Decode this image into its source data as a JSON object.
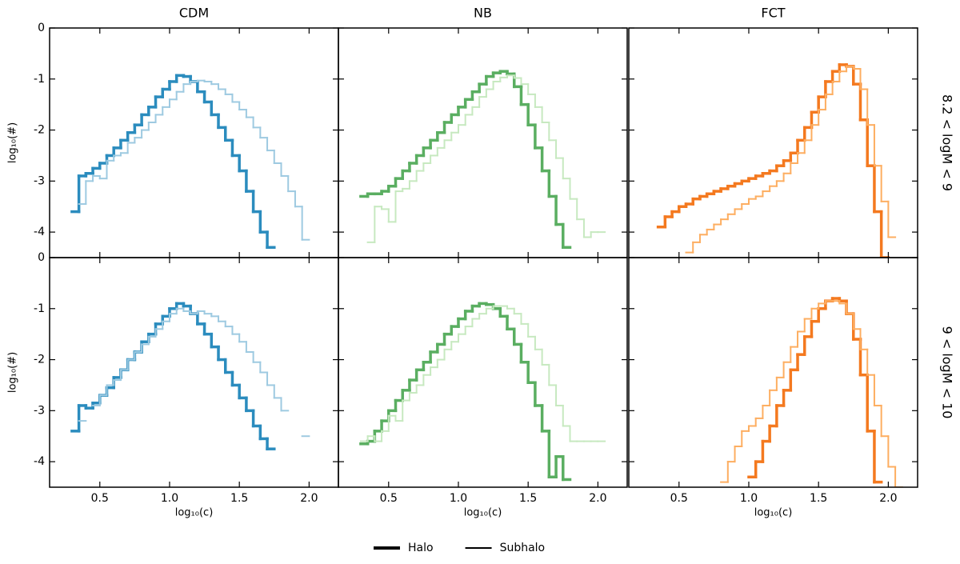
{
  "legend": [
    {
      "label": "Halo",
      "width": 4
    },
    {
      "label": "Subhalo",
      "width": 2
    }
  ],
  "chart_data": [
    {
      "type": "histogram",
      "title": "CDM",
      "ylabel": "log₁₀(#)",
      "bins": [
        0.3,
        0.35,
        0.4,
        0.45,
        0.5,
        0.55,
        0.6,
        0.65,
        0.7,
        0.75,
        0.8,
        0.85,
        0.9,
        0.95,
        1.0,
        1.05,
        1.1,
        1.15,
        1.2,
        1.25,
        1.3,
        1.35,
        1.4,
        1.45,
        1.5,
        1.55,
        1.6,
        1.65,
        1.7,
        1.75,
        1.8,
        1.85,
        1.9,
        1.95,
        2.0,
        2.05,
        2.1,
        2.15,
        2.2
      ],
      "series": [
        {
          "color": "#2b8cbe",
          "linewidth": 3.5,
          "values": [
            -3.6,
            -2.9,
            -2.85,
            -2.75,
            -2.65,
            -2.5,
            -2.35,
            -2.2,
            -2.05,
            -1.9,
            -1.7,
            -1.55,
            -1.35,
            -1.2,
            -1.05,
            -0.93,
            -0.95,
            -1.05,
            -1.25,
            -1.45,
            -1.7,
            -1.95,
            -2.2,
            -2.5,
            -2.8,
            -3.2,
            -3.6,
            -4.0,
            -4.3,
            null,
            null,
            null,
            null,
            null,
            null,
            null,
            null,
            null
          ]
        },
        {
          "color": "#9ecae1",
          "linewidth": 2,
          "values": [
            null,
            -3.45,
            -3.0,
            -2.9,
            -2.95,
            -2.6,
            -2.5,
            -2.45,
            -2.25,
            -2.15,
            -2.0,
            -1.85,
            -1.7,
            -1.55,
            -1.4,
            -1.25,
            -1.1,
            -1.05,
            -1.03,
            -1.05,
            -1.1,
            -1.2,
            -1.3,
            -1.45,
            -1.6,
            -1.75,
            -1.95,
            -2.15,
            -2.4,
            -2.65,
            -2.9,
            -3.2,
            -3.5,
            -4.15,
            null,
            null,
            null,
            null
          ]
        }
      ],
      "xlim": [
        0.14,
        2.21
      ],
      "ylim": [
        -4.5,
        0
      ],
      "xticks": [
        0.5,
        1,
        1.5,
        2
      ],
      "yticks": [
        0,
        -1,
        -2,
        -3,
        -4
      ]
    },
    {
      "type": "histogram",
      "title": "NB",
      "bins": [
        0.3,
        0.35,
        0.4,
        0.45,
        0.5,
        0.55,
        0.6,
        0.65,
        0.7,
        0.75,
        0.8,
        0.85,
        0.9,
        0.95,
        1.0,
        1.05,
        1.1,
        1.15,
        1.2,
        1.25,
        1.3,
        1.35,
        1.4,
        1.45,
        1.5,
        1.55,
        1.6,
        1.65,
        1.7,
        1.75,
        1.8,
        1.85,
        1.9,
        1.95,
        2.0,
        2.05,
        2.1,
        2.15,
        2.2
      ],
      "series": [
        {
          "color": "#5aae61",
          "linewidth": 3.5,
          "values": [
            -3.3,
            -3.25,
            -3.25,
            -3.2,
            -3.1,
            -2.95,
            -2.8,
            -2.65,
            -2.5,
            -2.35,
            -2.2,
            -2.05,
            -1.85,
            -1.7,
            -1.55,
            -1.4,
            -1.25,
            -1.1,
            -0.95,
            -0.88,
            -0.85,
            -0.9,
            -1.15,
            -1.5,
            -1.9,
            -2.35,
            -2.8,
            -3.3,
            -3.85,
            -4.3,
            null,
            null,
            null,
            null,
            null,
            null,
            null,
            null
          ]
        },
        {
          "color": "#c7e9c0",
          "linewidth": 2,
          "values": [
            null,
            -4.2,
            -3.5,
            -3.55,
            -3.8,
            -3.2,
            -3.15,
            -3.0,
            -2.8,
            -2.65,
            -2.5,
            -2.35,
            -2.2,
            -2.05,
            -1.9,
            -1.7,
            -1.55,
            -1.35,
            -1.2,
            -1.05,
            -0.97,
            -0.93,
            -0.98,
            -1.1,
            -1.3,
            -1.55,
            -1.85,
            -2.2,
            -2.55,
            -2.95,
            -3.35,
            -3.75,
            -4.1,
            -4.0,
            -4.0,
            null,
            null,
            null
          ]
        }
      ],
      "xlim": [
        0.14,
        2.21
      ],
      "ylim": [
        -4.5,
        0
      ],
      "xticks": [
        0.5,
        1,
        1.5,
        2
      ],
      "yticks": [
        0,
        -1,
        -2,
        -3,
        -4
      ]
    },
    {
      "type": "histogram",
      "title": "FCT",
      "row_label": "8.2 < logM < 9",
      "bins": [
        0.3,
        0.35,
        0.4,
        0.45,
        0.5,
        0.55,
        0.6,
        0.65,
        0.7,
        0.75,
        0.8,
        0.85,
        0.9,
        0.95,
        1.0,
        1.05,
        1.1,
        1.15,
        1.2,
        1.25,
        1.3,
        1.35,
        1.4,
        1.45,
        1.5,
        1.55,
        1.6,
        1.65,
        1.7,
        1.75,
        1.8,
        1.85,
        1.9,
        1.95,
        2.0,
        2.05,
        2.1,
        2.15,
        2.2
      ],
      "series": [
        {
          "color": "#f4791f",
          "linewidth": 3.5,
          "values": [
            null,
            -3.9,
            -3.7,
            -3.6,
            -3.5,
            -3.45,
            -3.35,
            -3.3,
            -3.25,
            -3.2,
            -3.15,
            -3.1,
            -3.05,
            -3.0,
            -2.95,
            -2.9,
            -2.85,
            -2.8,
            -2.7,
            -2.6,
            -2.45,
            -2.2,
            -1.95,
            -1.65,
            -1.35,
            -1.05,
            -0.85,
            -0.72,
            -0.75,
            -1.1,
            -1.8,
            -2.7,
            -3.6,
            -4.5,
            null,
            null,
            null,
            null
          ]
        },
        {
          "color": "#fdae61",
          "linewidth": 2,
          "values": [
            null,
            null,
            null,
            null,
            null,
            -4.4,
            -4.2,
            -4.05,
            -3.95,
            -3.85,
            -3.75,
            -3.65,
            -3.55,
            -3.45,
            -3.35,
            -3.3,
            -3.2,
            -3.1,
            -3.0,
            -2.85,
            -2.65,
            -2.45,
            -2.2,
            -1.9,
            -1.6,
            -1.3,
            -1.05,
            -0.85,
            -0.75,
            -0.8,
            -1.2,
            -1.9,
            -2.7,
            -3.4,
            -4.1,
            null,
            null,
            null
          ]
        }
      ],
      "xlim": [
        0.14,
        2.21
      ],
      "ylim": [
        -4.5,
        0
      ],
      "xticks": [
        0.5,
        1,
        1.5,
        2
      ],
      "yticks": [
        0,
        -1,
        -2,
        -3,
        -4
      ]
    },
    {
      "type": "histogram",
      "ylabel": "log₁₀(#)",
      "xlabel": "log₁₀(c)",
      "bins": [
        0.3,
        0.35,
        0.4,
        0.45,
        0.5,
        0.55,
        0.6,
        0.65,
        0.7,
        0.75,
        0.8,
        0.85,
        0.9,
        0.95,
        1.0,
        1.05,
        1.1,
        1.15,
        1.2,
        1.25,
        1.3,
        1.35,
        1.4,
        1.45,
        1.5,
        1.55,
        1.6,
        1.65,
        1.7,
        1.75,
        1.8,
        1.85,
        1.9,
        1.95,
        2.0,
        2.05,
        2.1,
        2.15,
        2.2
      ],
      "series": [
        {
          "color": "#2b8cbe",
          "linewidth": 3.5,
          "values": [
            -3.4,
            -2.9,
            -2.95,
            -2.85,
            -2.7,
            -2.55,
            -2.35,
            -2.2,
            -2.0,
            -1.85,
            -1.65,
            -1.5,
            -1.3,
            -1.15,
            -1.0,
            -0.9,
            -0.95,
            -1.1,
            -1.3,
            -1.5,
            -1.75,
            -2.0,
            -2.25,
            -2.5,
            -2.75,
            -3.0,
            -3.3,
            -3.55,
            -3.75,
            null,
            null,
            null,
            null,
            null,
            null,
            null,
            null,
            null
          ]
        },
        {
          "color": "#9ecae1",
          "linewidth": 2,
          "values": [
            null,
            -3.2,
            null,
            -2.9,
            -2.7,
            -2.5,
            -2.4,
            -2.2,
            -2.0,
            -1.85,
            -1.7,
            -1.55,
            -1.4,
            -1.25,
            -1.1,
            -1.0,
            -1.05,
            -1.1,
            -1.05,
            -1.1,
            -1.15,
            -1.25,
            -1.35,
            -1.5,
            -1.65,
            -1.85,
            -2.05,
            -2.25,
            -2.5,
            -2.75,
            -3.0,
            null,
            null,
            -3.5,
            null,
            null,
            null,
            null
          ]
        }
      ],
      "xlim": [
        0.14,
        2.21
      ],
      "ylim": [
        -4.5,
        0
      ],
      "xticks": [
        0.5,
        {
          "value": 1,
          "label": "1.0"
        },
        1.5,
        {
          "value": 2,
          "label": "2.0"
        }
      ],
      "yticks": [
        0,
        -1,
        -2,
        -3,
        -4
      ]
    },
    {
      "type": "histogram",
      "xlabel": "log₁₀(c)",
      "bins": [
        0.3,
        0.35,
        0.4,
        0.45,
        0.5,
        0.55,
        0.6,
        0.65,
        0.7,
        0.75,
        0.8,
        0.85,
        0.9,
        0.95,
        1.0,
        1.05,
        1.1,
        1.15,
        1.2,
        1.25,
        1.3,
        1.35,
        1.4,
        1.45,
        1.5,
        1.55,
        1.6,
        1.65,
        1.7,
        1.75,
        1.8,
        1.85,
        1.9,
        1.95,
        2.0,
        2.05,
        2.1,
        2.15,
        2.2
      ],
      "series": [
        {
          "color": "#5aae61",
          "linewidth": 3.5,
          "values": [
            -3.65,
            -3.6,
            -3.4,
            -3.2,
            -3.0,
            -2.8,
            -2.6,
            -2.4,
            -2.2,
            -2.05,
            -1.85,
            -1.7,
            -1.5,
            -1.35,
            -1.2,
            -1.05,
            -0.95,
            -0.9,
            -0.92,
            -1.0,
            -1.15,
            -1.4,
            -1.7,
            -2.05,
            -2.45,
            -2.9,
            -3.4,
            -4.3,
            -3.9,
            -4.35,
            null,
            null,
            null,
            null,
            null,
            null,
            null,
            null
          ]
        },
        {
          "color": "#c7e9c0",
          "linewidth": 2,
          "values": [
            -3.6,
            -3.5,
            -3.6,
            -3.4,
            -3.1,
            -3.2,
            -2.8,
            -2.65,
            -2.5,
            -2.3,
            -2.15,
            -2.0,
            -1.8,
            -1.65,
            -1.5,
            -1.35,
            -1.2,
            -1.1,
            -1.0,
            -0.95,
            -0.95,
            -1.0,
            -1.1,
            -1.3,
            -1.55,
            -1.8,
            -2.1,
            -2.5,
            -2.9,
            -3.3,
            -3.6,
            -3.6,
            -3.6,
            -3.6,
            -3.6,
            null,
            null,
            null
          ]
        }
      ],
      "xlim": [
        0.14,
        2.21
      ],
      "ylim": [
        -4.5,
        0
      ],
      "xticks": [
        0.5,
        {
          "value": 1,
          "label": "1.0"
        },
        1.5,
        {
          "value": 2,
          "label": "2.0"
        }
      ],
      "yticks": [
        0,
        -1,
        -2,
        -3,
        -4
      ]
    },
    {
      "type": "histogram",
      "xlabel": "log₁₀(c)",
      "row_label": "9 < logM < 10",
      "bins": [
        0.3,
        0.35,
        0.4,
        0.45,
        0.5,
        0.55,
        0.6,
        0.65,
        0.7,
        0.75,
        0.8,
        0.85,
        0.9,
        0.95,
        1.0,
        1.05,
        1.1,
        1.15,
        1.2,
        1.25,
        1.3,
        1.35,
        1.4,
        1.45,
        1.5,
        1.55,
        1.6,
        1.65,
        1.7,
        1.75,
        1.8,
        1.85,
        1.9,
        1.95,
        2.0,
        2.05,
        2.1,
        2.15,
        2.2
      ],
      "series": [
        {
          "color": "#f4791f",
          "linewidth": 3.5,
          "values": [
            null,
            null,
            null,
            null,
            null,
            null,
            null,
            null,
            null,
            null,
            null,
            null,
            null,
            null,
            -4.3,
            -4.0,
            -3.6,
            -3.3,
            -2.9,
            -2.6,
            -2.2,
            -1.9,
            -1.55,
            -1.25,
            -1.0,
            -0.85,
            -0.8,
            -0.85,
            -1.1,
            -1.6,
            -2.3,
            -3.4,
            -4.4,
            null,
            null,
            null,
            null,
            null
          ]
        },
        {
          "color": "#fdae61",
          "linewidth": 2,
          "values": [
            null,
            null,
            null,
            null,
            null,
            null,
            null,
            null,
            null,
            null,
            -4.4,
            -4.0,
            -3.7,
            -3.4,
            -3.3,
            -3.15,
            -2.9,
            -2.6,
            -2.35,
            -2.05,
            -1.75,
            -1.45,
            -1.2,
            -1.0,
            -0.9,
            -0.85,
            -0.85,
            -0.9,
            -1.1,
            -1.4,
            -1.8,
            -2.3,
            -2.9,
            -3.5,
            -4.1,
            -4.5,
            null,
            null
          ]
        }
      ],
      "xlim": [
        0.14,
        2.21
      ],
      "ylim": [
        -4.5,
        0
      ],
      "xticks": [
        0.5,
        {
          "value": 1,
          "label": "1.0"
        },
        1.5,
        {
          "value": 2,
          "label": "2.0"
        }
      ],
      "yticks": [
        0,
        -1,
        -2,
        -3,
        -4
      ]
    }
  ]
}
